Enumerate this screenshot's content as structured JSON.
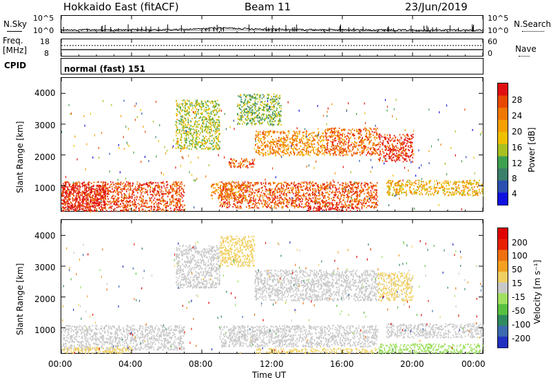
{
  "header": {
    "radar": "Hokkaido East (fitACF)",
    "beam": "Beam 11",
    "date": "23/Jun/2019"
  },
  "noise_panel": {
    "left_label": "N.Sky",
    "right_label": "N.Search",
    "left_ticks": [
      "10^5",
      "10^0"
    ],
    "right_ticks": [
      "10^5",
      "10^0"
    ]
  },
  "freq_panel": {
    "left_label_1": "Freq.",
    "left_label_2": "[MHz]",
    "left_ticks": [
      "18",
      "8"
    ],
    "right_label": "Nave",
    "right_ticks": [
      "60",
      "0"
    ]
  },
  "cpid_panel": {
    "label": "CPID",
    "value": "normal (fast) 151"
  },
  "power_panel": {
    "ylabel": "Slant Range [km]",
    "yticks": [
      "4000",
      "3000",
      "2000",
      "1000"
    ],
    "colorbar_label": "Power [dB]",
    "colorbar_ticks": [
      "28",
      "24",
      "20",
      "16",
      "12",
      "8",
      "4"
    ],
    "colors": [
      "#1010e0",
      "#2a4fb0",
      "#3a7f6a",
      "#3fa050",
      "#a8c020",
      "#f0c000",
      "#f5a000",
      "#f07800",
      "#e84800",
      "#e01010"
    ]
  },
  "velocity_panel": {
    "ylabel": "Slant Range [km]",
    "yticks": [
      "4000",
      "3000",
      "2000",
      "1000"
    ],
    "colorbar_label": "Velocity [m s⁻¹]",
    "colorbar_ticks": [
      "200",
      "100",
      "50",
      "15",
      "-15",
      "-50",
      "-100",
      "-200"
    ],
    "colors": [
      "#2030c0",
      "#3a6ab0",
      "#2f8a60",
      "#58c040",
      "#a0e060",
      "#c8c8c8",
      "#f0d060",
      "#f5a020",
      "#f07010",
      "#e82000",
      "#e00000"
    ]
  },
  "x_axis": {
    "label": "Time UT",
    "ticks": [
      "00:00",
      "04:00",
      "08:00",
      "12:00",
      "16:00",
      "20:00",
      "00:00"
    ]
  },
  "chart_data": [
    {
      "type": "line",
      "title": "N.Sky / N.Search",
      "x_range": [
        "00:00",
        "24:00"
      ],
      "ylim": [
        "10^0",
        "10^5"
      ],
      "log_y": true,
      "series": [
        {
          "name": "N.Sky",
          "x": [
            0,
            1,
            2,
            3,
            4,
            5,
            6,
            7,
            8,
            9,
            10,
            11,
            12,
            13,
            14,
            15,
            16,
            17,
            18,
            19,
            20,
            21,
            22,
            23,
            24
          ],
          "values": [
            1.5,
            2.0,
            1.8,
            1.6,
            2.0,
            1.8,
            2.2,
            2.5,
            4.0,
            8.0,
            6.0,
            4.0,
            3.0,
            2.5,
            2.2,
            2.0,
            2.0,
            1.8,
            2.0,
            1.8,
            1.6,
            1.5,
            1.8,
            1.6,
            1.5
          ]
        },
        {
          "name": "N.Search",
          "x": [
            0,
            4,
            8,
            9,
            10,
            12,
            16,
            20,
            24
          ],
          "values": [
            1.2,
            1.5,
            2.5,
            5.0,
            4.0,
            2.0,
            1.6,
            1.3,
            1.2
          ]
        }
      ]
    },
    {
      "type": "line",
      "title": "Freq. / Nave",
      "x_range": [
        "00:00",
        "24:00"
      ],
      "series": [
        {
          "name": "Freq.",
          "x": [
            0,
            24
          ],
          "values": [
            11,
            11
          ]
        },
        {
          "name": "Nave",
          "x": [
            0,
            24
          ],
          "values": [
            20,
            20
          ]
        }
      ]
    },
    {
      "type": "heatmap",
      "title": "Power [dB]",
      "x_range": [
        "00:00",
        "24:00"
      ],
      "ylim": [
        180,
        4500
      ],
      "clim": [
        0,
        30
      ],
      "blobs": [
        {
          "t0": 0.0,
          "t1": 7.0,
          "r0": 200,
          "r1": 1150,
          "value": 26
        },
        {
          "t0": 0.0,
          "t1": 2.5,
          "r0": 200,
          "r1": 1050,
          "value": 29
        },
        {
          "t0": 9.0,
          "t1": 18.0,
          "r0": 300,
          "r1": 1150,
          "value": 25
        },
        {
          "t0": 8.5,
          "t1": 10.5,
          "r0": 600,
          "r1": 1100,
          "value": 22
        },
        {
          "t0": 18.5,
          "t1": 24.0,
          "r0": 700,
          "r1": 1200,
          "value": 18
        },
        {
          "t0": 9.5,
          "t1": 11.0,
          "r0": 1600,
          "r1": 1900,
          "value": 25
        },
        {
          "t0": 11.0,
          "t1": 15.0,
          "r0": 2000,
          "r1": 2800,
          "value": 21
        },
        {
          "t0": 15.0,
          "t1": 18.0,
          "r0": 2000,
          "r1": 2900,
          "value": 24
        },
        {
          "t0": 18.0,
          "t1": 20.0,
          "r0": 1800,
          "r1": 2700,
          "value": 27
        },
        {
          "t0": 6.5,
          "t1": 9.0,
          "r0": 2200,
          "r1": 3800,
          "value": 14
        },
        {
          "t0": 10.0,
          "t1": 12.5,
          "r0": 3000,
          "r1": 4000,
          "value": 12
        },
        {
          "t0": 14.0,
          "t1": 17.0,
          "r0": 200,
          "r1": 350,
          "value": 30
        }
      ]
    },
    {
      "type": "heatmap",
      "title": "Velocity [m s⁻¹]",
      "x_range": [
        "00:00",
        "24:00"
      ],
      "ylim": [
        180,
        4500
      ],
      "clim": [
        -200,
        200
      ],
      "blobs": [
        {
          "t0": 0.0,
          "t1": 7.0,
          "r0": 300,
          "r1": 1100,
          "value": 0
        },
        {
          "t0": 9.0,
          "t1": 18.0,
          "r0": 400,
          "r1": 1100,
          "value": 0
        },
        {
          "t0": 18.5,
          "t1": 24.0,
          "r0": 700,
          "r1": 1150,
          "value": 0
        },
        {
          "t0": 11.0,
          "t1": 18.0,
          "r0": 1900,
          "r1": 2900,
          "value": 0
        },
        {
          "t0": 18.0,
          "t1": 20.0,
          "r0": 1900,
          "r1": 2800,
          "value": 30
        },
        {
          "t0": 6.5,
          "t1": 9.0,
          "r0": 2300,
          "r1": 3700,
          "value": 0
        },
        {
          "t0": 0.0,
          "t1": 4.0,
          "r0": 200,
          "r1": 400,
          "value": 40
        },
        {
          "t0": 11.0,
          "t1": 18.0,
          "r0": 200,
          "r1": 350,
          "value": 35
        },
        {
          "t0": 18.0,
          "t1": 24.0,
          "r0": 200,
          "r1": 500,
          "value": -40
        },
        {
          "t0": 9.0,
          "t1": 11.0,
          "r0": 3000,
          "r1": 4000,
          "value": 40
        }
      ]
    }
  ]
}
